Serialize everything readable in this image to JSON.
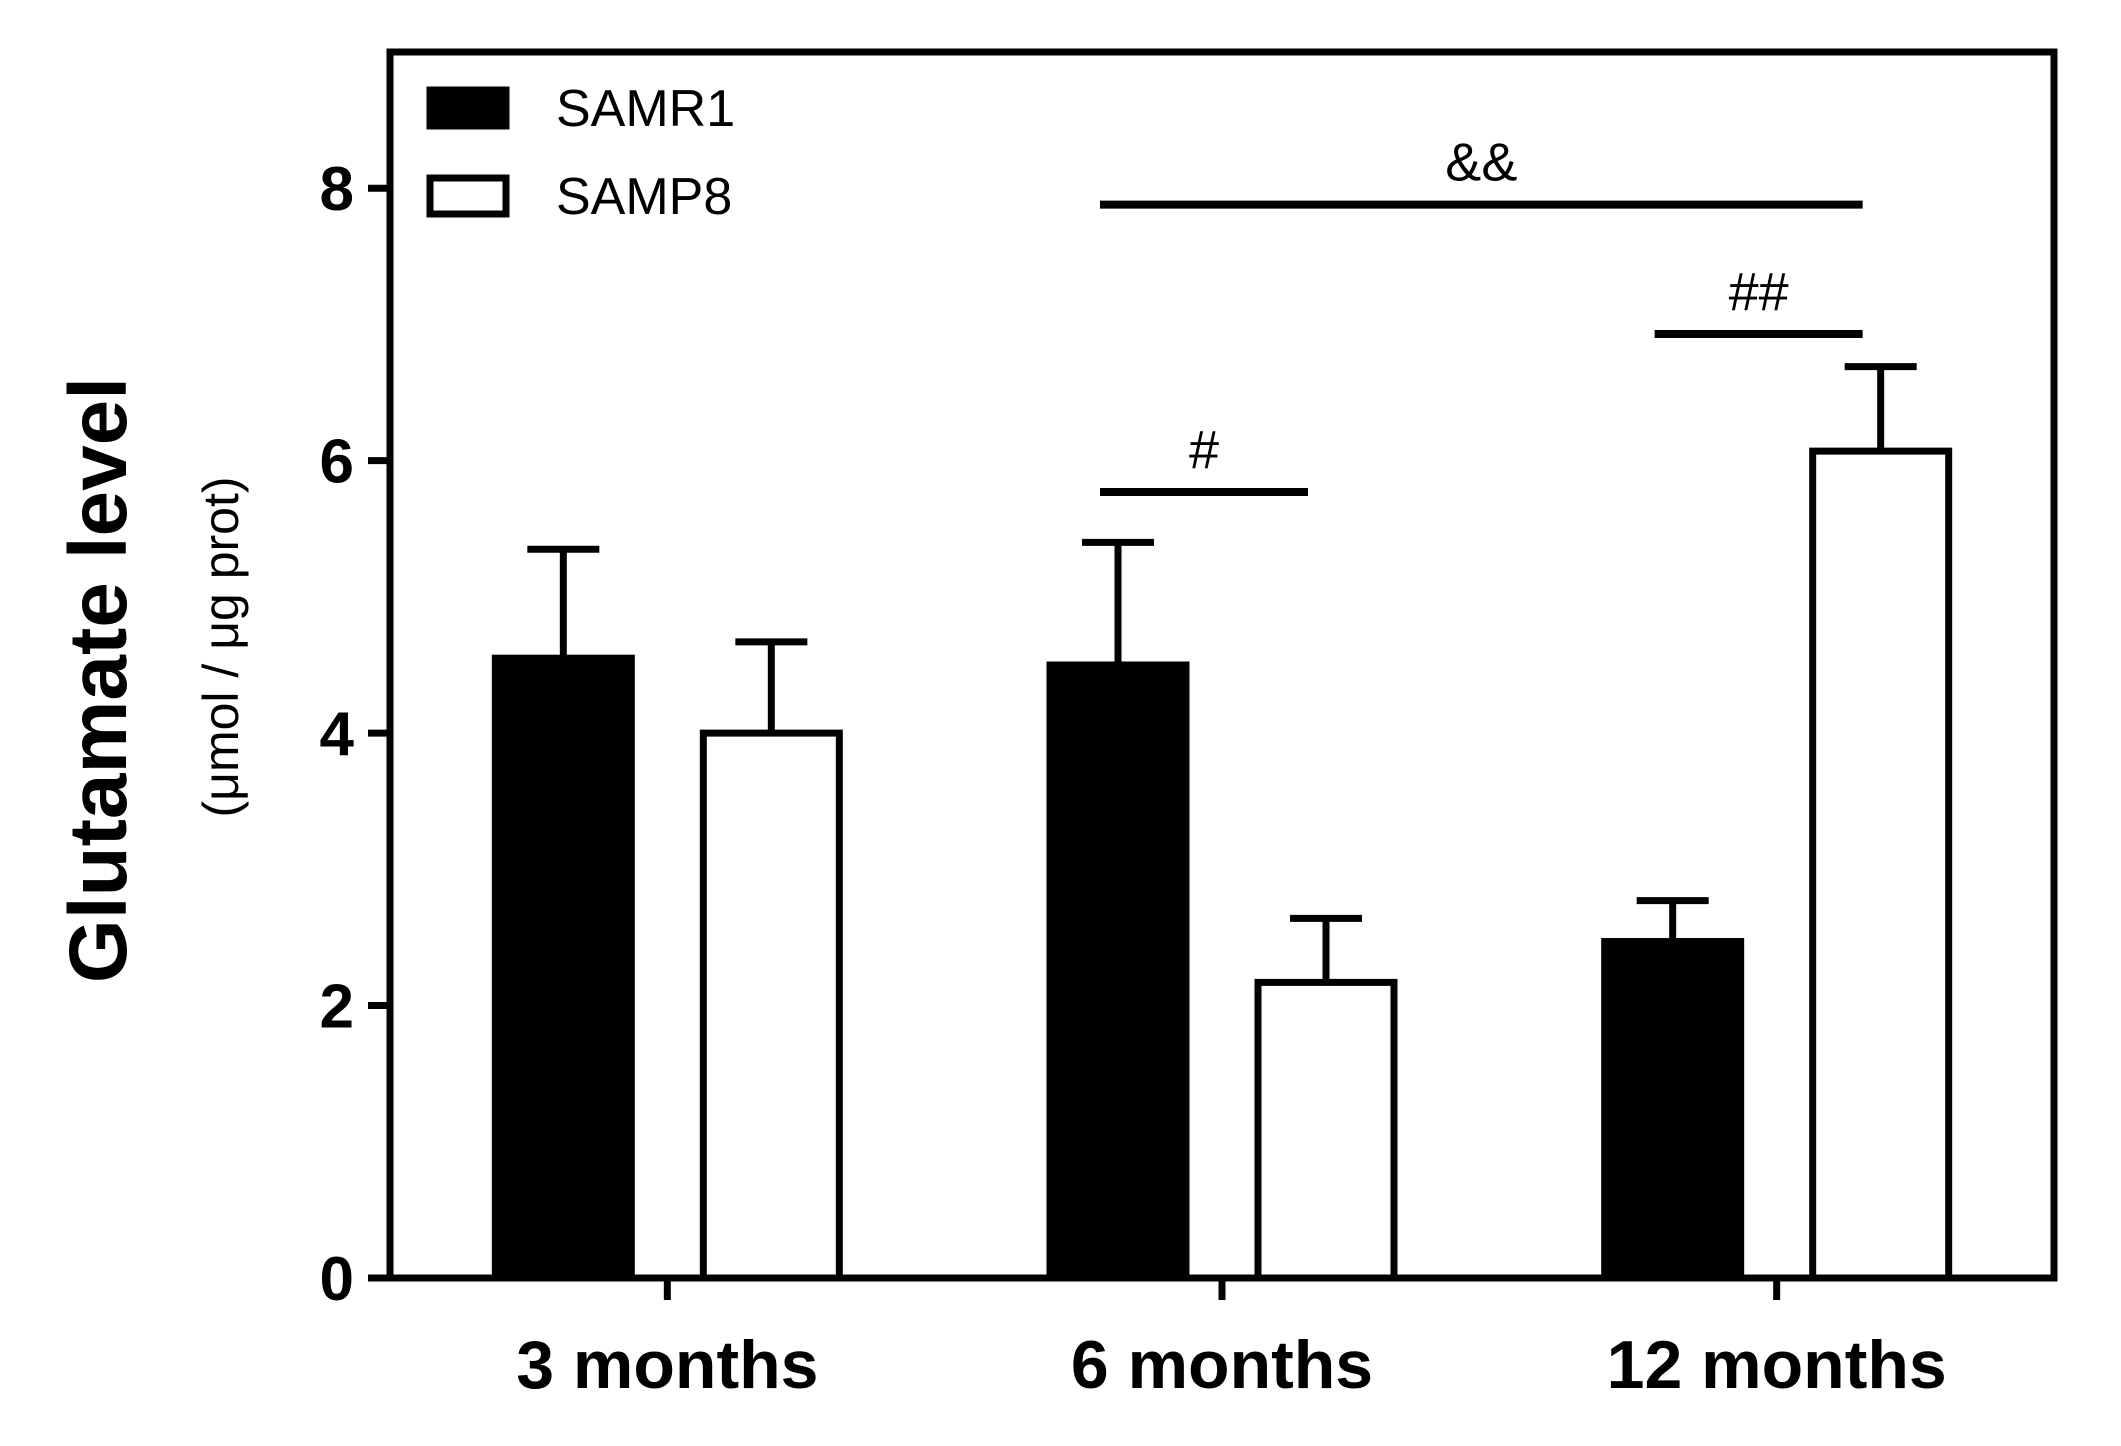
{
  "chart_data": {
    "type": "bar",
    "categories": [
      "3 months",
      "6 months",
      "12 months"
    ],
    "series": [
      {
        "name": "SAMR1",
        "fill": "#000000",
        "values": [
          4.55,
          4.5,
          2.47
        ],
        "errors": [
          0.8,
          0.9,
          0.3
        ]
      },
      {
        "name": "SAMP8",
        "fill": "#ffffff",
        "values": [
          4.0,
          2.17,
          6.07
        ],
        "errors": [
          0.67,
          0.47,
          0.62
        ]
      }
    ],
    "ylabel": "Glutamate level",
    "ylabel_unit": "(μmol / μg prot)",
    "ylim": [
      0,
      9
    ],
    "yticks": [
      0,
      2,
      4,
      6,
      8
    ],
    "legend_position": "top-left",
    "grid": false,
    "annotations": [
      {
        "text": "#",
        "from": {
          "category": 1,
          "series": 0
        },
        "to": {
          "category": 1,
          "series": 1
        },
        "y": 5.77
      },
      {
        "text": "##",
        "from": {
          "category": 2,
          "series": 0
        },
        "to": {
          "category": 2,
          "series": 1
        },
        "y": 6.93
      },
      {
        "text": "&&",
        "from": {
          "category": 1,
          "series": 0
        },
        "to": {
          "category": 2,
          "series": 1
        },
        "y": 7.88
      }
    ]
  }
}
